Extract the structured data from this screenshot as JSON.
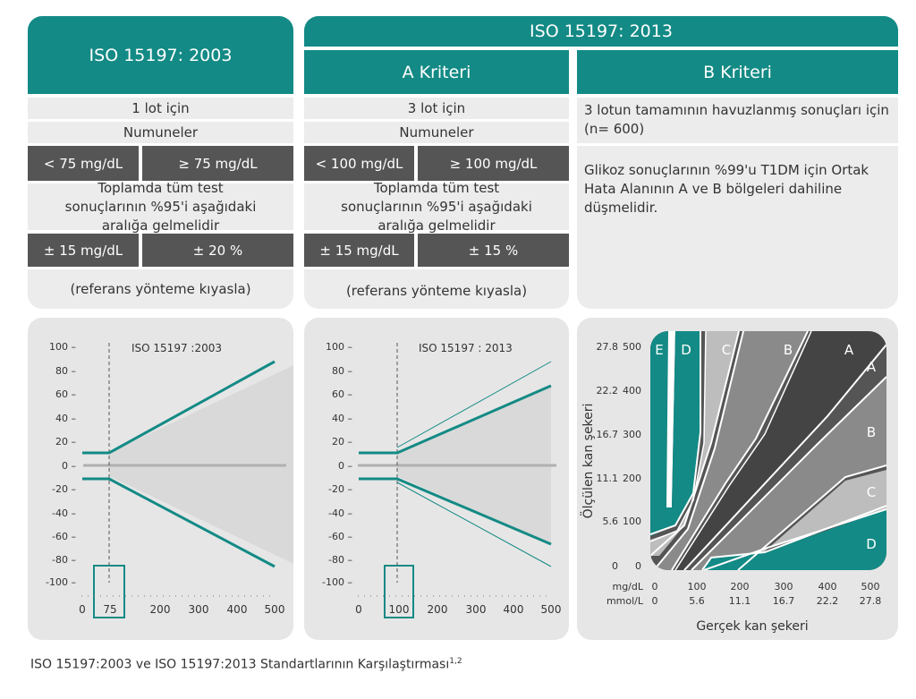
{
  "col2003": {
    "title": "ISO 15197:    2003",
    "lot": "1 lot için",
    "samples": "Numuneler",
    "low_range": "< 75 mg/dL",
    "high_range": "≥ 75 mg/dL",
    "requirement": "Toplamda tüm test sonuçlarının %95'i aşağıdaki aralığa gelmelidir",
    "low_tol": "± 15 mg/dL",
    "high_tol": "± 20 %",
    "reference": "(referans yönteme kıyasla)"
  },
  "col2013": {
    "title": "ISO 15197:    2013",
    "criteria_a": {
      "title": "A Kriteri",
      "lot": "3 lot için",
      "samples": "Numuneler",
      "low_range": "< 100 mg/dL",
      "high_range": "≥ 100 mg/dL",
      "requirement": "Toplamda tüm test sonuçlarının %95'i aşağıdaki aralığa gelmelidir",
      "low_tol": "± 15 mg/dL",
      "high_tol": "± 15 %",
      "reference": "(referans yönteme kıyasla)"
    },
    "criteria_b": {
      "title": "B Kriteri",
      "pooled": "3 lotun tamamının havuzlanmış sonuçları için (n= 600)",
      "requirement": "Glikoz sonuçlarının %99'u T1DM için Ortak Hata Alanının A ve B bölgeleri dahiline düşmelidir."
    }
  },
  "chart2003": {
    "label": "ISO 15197    :2003",
    "y_ticks": [
      "100 –",
      "80 –",
      "60 –",
      "40 –",
      "20 –",
      "0 –",
      "-20 –",
      "-40 –",
      "-60 –",
      "-80 –",
      "-100 –"
    ],
    "x_ticks": [
      "0",
      "75",
      "200",
      "300",
      "400",
      "500"
    ]
  },
  "chart2013": {
    "label": "ISO 15197    : 2013",
    "y_ticks": [
      "100 –",
      "80 –",
      "60 –",
      "40 –",
      "20 –",
      "0 –",
      "-20 –",
      "-40 –",
      "-60 –",
      "-80 –",
      "-100 –"
    ],
    "x_ticks": [
      "0",
      "100",
      "200",
      "300",
      "400",
      "500"
    ]
  },
  "error_grid": {
    "ylabel": "Ölçülen kan şekeri",
    "xlabel": "Gerçek kan şekeri",
    "y_mmol": [
      "27.8",
      "22.2",
      "16.7",
      "11.1",
      "5.6",
      "0"
    ],
    "y_mg": [
      "500",
      "400",
      "300",
      "200",
      "100",
      "0"
    ],
    "x_unit_mg": "mg/dL",
    "x_unit_mmol": "mmol/L",
    "x_mg": [
      "0",
      "100",
      "200",
      "300",
      "400",
      "500"
    ],
    "x_mmol": [
      "0",
      "5.6",
      "11.1",
      "16.7",
      "22.2",
      "27.8"
    ],
    "zones_top": [
      "E",
      "D",
      "C",
      "B",
      "A"
    ],
    "zones_right": [
      "A",
      "B",
      "C",
      "D"
    ]
  },
  "caption": "ISO 15197:2003 ve ISO 15197:2013 Standartlarının Karşılaştırması",
  "caption_sup": "1,2"
}
